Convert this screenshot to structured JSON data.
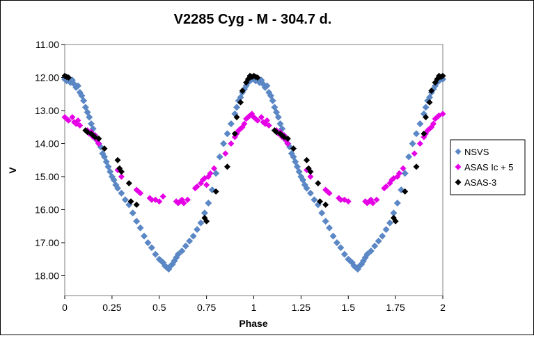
{
  "chart_data": {
    "type": "scatter",
    "title": "V2285 Cyg - M - 304.7 d.",
    "xlabel": "Phase",
    "ylabel": "V",
    "xlim": [
      0,
      2
    ],
    "ylim": [
      11.0,
      18.6
    ],
    "y_inverted": true,
    "grid": false,
    "legend_position": "right",
    "x_ticks": [
      "0",
      "0.25",
      "0.5",
      "0.75",
      "1",
      "1.25",
      "1.5",
      "1.75",
      "2"
    ],
    "y_ticks": [
      "11.00",
      "12.00",
      "13.00",
      "14.00",
      "15.00",
      "16.00",
      "17.00",
      "18.00"
    ],
    "series": [
      {
        "name": "NSVS",
        "color": "#5B87C5",
        "marker": "diamond",
        "points": [
          [
            0.0,
            12.05
          ],
          [
            0.01,
            12.1
          ],
          [
            0.02,
            12.02
          ],
          [
            0.03,
            12.15
          ],
          [
            0.04,
            12.08
          ],
          [
            0.05,
            12.2
          ],
          [
            0.06,
            12.3
          ],
          [
            0.07,
            12.25
          ],
          [
            0.08,
            12.45
          ],
          [
            0.09,
            12.55
          ],
          [
            0.1,
            12.7
          ],
          [
            0.11,
            12.9
          ],
          [
            0.12,
            13.05
          ],
          [
            0.13,
            13.2
          ],
          [
            0.14,
            13.4
          ],
          [
            0.15,
            13.55
          ],
          [
            0.16,
            13.75
          ],
          [
            0.17,
            13.9
          ],
          [
            0.18,
            14.0
          ],
          [
            0.19,
            14.1
          ],
          [
            0.2,
            14.3
          ],
          [
            0.21,
            14.4
          ],
          [
            0.22,
            14.55
          ],
          [
            0.23,
            14.7
          ],
          [
            0.24,
            14.85
          ],
          [
            0.25,
            15.0
          ],
          [
            0.26,
            15.1
          ],
          [
            0.27,
            15.25
          ],
          [
            0.28,
            15.35
          ],
          [
            0.3,
            15.5
          ],
          [
            0.32,
            15.7
          ],
          [
            0.34,
            15.85
          ],
          [
            0.36,
            16.1
          ],
          [
            0.38,
            16.35
          ],
          [
            0.4,
            16.55
          ],
          [
            0.42,
            16.8
          ],
          [
            0.44,
            17.0
          ],
          [
            0.46,
            17.15
          ],
          [
            0.48,
            17.35
          ],
          [
            0.5,
            17.5
          ],
          [
            0.51,
            17.55
          ],
          [
            0.52,
            17.6
          ],
          [
            0.53,
            17.7
          ],
          [
            0.54,
            17.75
          ],
          [
            0.55,
            17.8
          ],
          [
            0.56,
            17.7
          ],
          [
            0.57,
            17.65
          ],
          [
            0.58,
            17.55
          ],
          [
            0.59,
            17.45
          ],
          [
            0.6,
            17.35
          ],
          [
            0.62,
            17.25
          ],
          [
            0.64,
            17.1
          ],
          [
            0.66,
            16.95
          ],
          [
            0.68,
            16.8
          ],
          [
            0.7,
            16.6
          ],
          [
            0.72,
            16.4
          ],
          [
            0.74,
            16.1
          ],
          [
            0.76,
            15.8
          ],
          [
            0.78,
            15.4
          ],
          [
            0.8,
            14.9
          ],
          [
            0.82,
            14.4
          ],
          [
            0.84,
            14.0
          ],
          [
            0.86,
            13.7
          ],
          [
            0.88,
            13.4
          ],
          [
            0.9,
            13.1
          ],
          [
            0.91,
            12.9
          ],
          [
            0.92,
            12.7
          ],
          [
            0.93,
            12.6
          ],
          [
            0.94,
            12.45
          ],
          [
            0.95,
            12.35
          ],
          [
            0.96,
            12.25
          ],
          [
            0.97,
            12.15
          ],
          [
            0.98,
            12.1
          ],
          [
            0.99,
            12.05
          ],
          [
            1.0,
            12.05
          ],
          [
            1.01,
            12.1
          ],
          [
            1.02,
            12.02
          ],
          [
            1.03,
            12.15
          ],
          [
            1.04,
            12.08
          ],
          [
            1.05,
            12.2
          ],
          [
            1.06,
            12.3
          ],
          [
            1.07,
            12.25
          ],
          [
            1.08,
            12.45
          ],
          [
            1.09,
            12.55
          ],
          [
            1.1,
            12.7
          ],
          [
            1.11,
            12.9
          ],
          [
            1.12,
            13.05
          ],
          [
            1.13,
            13.2
          ],
          [
            1.14,
            13.4
          ],
          [
            1.15,
            13.55
          ],
          [
            1.16,
            13.75
          ],
          [
            1.17,
            13.9
          ],
          [
            1.18,
            14.0
          ],
          [
            1.19,
            14.1
          ],
          [
            1.2,
            14.3
          ],
          [
            1.21,
            14.4
          ],
          [
            1.22,
            14.55
          ],
          [
            1.23,
            14.7
          ],
          [
            1.24,
            14.85
          ],
          [
            1.25,
            15.0
          ],
          [
            1.26,
            15.1
          ],
          [
            1.27,
            15.25
          ],
          [
            1.28,
            15.35
          ],
          [
            1.3,
            15.5
          ],
          [
            1.32,
            15.7
          ],
          [
            1.34,
            15.85
          ],
          [
            1.36,
            16.1
          ],
          [
            1.38,
            16.35
          ],
          [
            1.4,
            16.55
          ],
          [
            1.42,
            16.8
          ],
          [
            1.44,
            17.0
          ],
          [
            1.46,
            17.15
          ],
          [
            1.48,
            17.35
          ],
          [
            1.5,
            17.5
          ],
          [
            1.51,
            17.55
          ],
          [
            1.52,
            17.6
          ],
          [
            1.53,
            17.7
          ],
          [
            1.54,
            17.75
          ],
          [
            1.55,
            17.8
          ],
          [
            1.56,
            17.7
          ],
          [
            1.57,
            17.65
          ],
          [
            1.58,
            17.55
          ],
          [
            1.59,
            17.45
          ],
          [
            1.6,
            17.35
          ],
          [
            1.62,
            17.25
          ],
          [
            1.64,
            17.1
          ],
          [
            1.66,
            16.95
          ],
          [
            1.68,
            16.8
          ],
          [
            1.7,
            16.6
          ],
          [
            1.72,
            16.4
          ],
          [
            1.74,
            16.1
          ],
          [
            1.76,
            15.8
          ],
          [
            1.78,
            15.4
          ],
          [
            1.8,
            14.9
          ],
          [
            1.82,
            14.4
          ],
          [
            1.84,
            14.0
          ],
          [
            1.86,
            13.7
          ],
          [
            1.88,
            13.4
          ],
          [
            1.9,
            13.1
          ],
          [
            1.91,
            12.9
          ],
          [
            1.92,
            12.7
          ],
          [
            1.93,
            12.6
          ],
          [
            1.94,
            12.45
          ],
          [
            1.95,
            12.35
          ],
          [
            1.96,
            12.25
          ],
          [
            1.97,
            12.15
          ],
          [
            1.98,
            12.1
          ],
          [
            1.99,
            12.05
          ],
          [
            2.0,
            12.05
          ]
        ]
      },
      {
        "name": "ASAS Ic + 5",
        "color": "#E600E6",
        "marker": "diamond",
        "points": [
          [
            0.0,
            13.2
          ],
          [
            0.01,
            13.25
          ],
          [
            0.02,
            13.3
          ],
          [
            0.04,
            13.2
          ],
          [
            0.05,
            13.35
          ],
          [
            0.06,
            13.4
          ],
          [
            0.07,
            13.3
          ],
          [
            0.08,
            13.45
          ],
          [
            0.12,
            13.6
          ],
          [
            0.13,
            13.7
          ],
          [
            0.14,
            13.65
          ],
          [
            0.15,
            13.8
          ],
          [
            0.16,
            13.75
          ],
          [
            0.17,
            13.9
          ],
          [
            0.18,
            14.0
          ],
          [
            0.28,
            14.8
          ],
          [
            0.3,
            15.0
          ],
          [
            0.38,
            15.4
          ],
          [
            0.39,
            15.45
          ],
          [
            0.4,
            15.5
          ],
          [
            0.45,
            15.65
          ],
          [
            0.46,
            15.7
          ],
          [
            0.48,
            15.7
          ],
          [
            0.5,
            15.75
          ],
          [
            0.52,
            15.6
          ],
          [
            0.59,
            15.75
          ],
          [
            0.6,
            15.8
          ],
          [
            0.61,
            15.75
          ],
          [
            0.62,
            15.7
          ],
          [
            0.63,
            15.8
          ],
          [
            0.65,
            15.7
          ],
          [
            0.69,
            15.35
          ],
          [
            0.7,
            15.3
          ],
          [
            0.72,
            15.2
          ],
          [
            0.73,
            15.1
          ],
          [
            0.74,
            15.05
          ],
          [
            0.75,
            15.25
          ],
          [
            0.76,
            15.0
          ],
          [
            0.77,
            14.9
          ],
          [
            0.79,
            14.75
          ],
          [
            0.85,
            14.3
          ],
          [
            0.88,
            14.0
          ],
          [
            0.9,
            13.8
          ],
          [
            0.91,
            13.7
          ],
          [
            0.92,
            13.6
          ],
          [
            0.93,
            13.55
          ],
          [
            0.94,
            13.5
          ],
          [
            0.95,
            13.4
          ],
          [
            0.96,
            13.25
          ],
          [
            0.97,
            13.2
          ],
          [
            0.98,
            13.15
          ],
          [
            0.99,
            13.1
          ],
          [
            1.0,
            13.2
          ],
          [
            1.01,
            13.25
          ],
          [
            1.02,
            13.3
          ],
          [
            1.04,
            13.2
          ],
          [
            1.05,
            13.35
          ],
          [
            1.06,
            13.4
          ],
          [
            1.07,
            13.3
          ],
          [
            1.08,
            13.45
          ],
          [
            1.12,
            13.6
          ],
          [
            1.13,
            13.7
          ],
          [
            1.14,
            13.65
          ],
          [
            1.15,
            13.8
          ],
          [
            1.16,
            13.75
          ],
          [
            1.17,
            13.9
          ],
          [
            1.18,
            14.0
          ],
          [
            1.28,
            14.8
          ],
          [
            1.3,
            15.0
          ],
          [
            1.38,
            15.4
          ],
          [
            1.39,
            15.45
          ],
          [
            1.4,
            15.5
          ],
          [
            1.45,
            15.65
          ],
          [
            1.46,
            15.7
          ],
          [
            1.48,
            15.7
          ],
          [
            1.5,
            15.75
          ],
          [
            1.59,
            15.75
          ],
          [
            1.6,
            15.8
          ],
          [
            1.61,
            15.75
          ],
          [
            1.62,
            15.7
          ],
          [
            1.63,
            15.8
          ],
          [
            1.65,
            15.7
          ],
          [
            1.69,
            15.35
          ],
          [
            1.7,
            15.3
          ],
          [
            1.72,
            15.2
          ],
          [
            1.73,
            15.1
          ],
          [
            1.74,
            15.05
          ],
          [
            1.76,
            15.0
          ],
          [
            1.77,
            14.9
          ],
          [
            1.79,
            14.75
          ],
          [
            1.85,
            14.3
          ],
          [
            1.88,
            14.0
          ],
          [
            1.9,
            13.8
          ],
          [
            1.91,
            13.7
          ],
          [
            1.92,
            13.6
          ],
          [
            1.93,
            13.55
          ],
          [
            1.94,
            13.5
          ],
          [
            1.95,
            13.4
          ],
          [
            1.96,
            13.25
          ],
          [
            1.97,
            13.2
          ],
          [
            1.98,
            13.15
          ],
          [
            2.0,
            13.1
          ]
        ]
      },
      {
        "name": "ASAS-3",
        "color": "#000000",
        "marker": "diamond",
        "points": [
          [
            0.0,
            11.95
          ],
          [
            0.01,
            11.98
          ],
          [
            0.02,
            12.0
          ],
          [
            0.11,
            13.6
          ],
          [
            0.12,
            13.65
          ],
          [
            0.14,
            13.7
          ],
          [
            0.15,
            13.75
          ],
          [
            0.16,
            13.8
          ],
          [
            0.18,
            13.85
          ],
          [
            0.21,
            14.15
          ],
          [
            0.28,
            14.5
          ],
          [
            0.29,
            14.75
          ],
          [
            0.3,
            14.85
          ],
          [
            0.34,
            15.2
          ],
          [
            0.35,
            15.75
          ],
          [
            0.38,
            15.85
          ],
          [
            0.74,
            16.25
          ],
          [
            0.75,
            16.35
          ],
          [
            0.8,
            15.45
          ],
          [
            0.86,
            14.7
          ],
          [
            0.9,
            13.7
          ],
          [
            0.91,
            13.2
          ],
          [
            0.93,
            12.75
          ],
          [
            0.94,
            12.4
          ],
          [
            0.96,
            12.15
          ],
          [
            0.97,
            12.05
          ],
          [
            0.98,
            11.95
          ],
          [
            0.99,
            11.98
          ],
          [
            1.0,
            11.95
          ],
          [
            1.01,
            11.98
          ],
          [
            1.02,
            12.0
          ],
          [
            1.11,
            13.6
          ],
          [
            1.12,
            13.65
          ],
          [
            1.14,
            13.7
          ],
          [
            1.15,
            13.75
          ],
          [
            1.16,
            13.8
          ],
          [
            1.18,
            13.85
          ],
          [
            1.21,
            14.15
          ],
          [
            1.28,
            14.5
          ],
          [
            1.29,
            14.75
          ],
          [
            1.3,
            14.85
          ],
          [
            1.34,
            15.2
          ],
          [
            1.35,
            15.75
          ],
          [
            1.38,
            15.85
          ],
          [
            1.74,
            16.25
          ],
          [
            1.75,
            16.35
          ],
          [
            1.8,
            15.45
          ],
          [
            1.86,
            14.7
          ],
          [
            1.9,
            13.7
          ],
          [
            1.91,
            13.2
          ],
          [
            1.93,
            12.75
          ],
          [
            1.94,
            12.4
          ],
          [
            1.96,
            12.15
          ],
          [
            1.97,
            12.05
          ],
          [
            1.98,
            11.95
          ],
          [
            1.99,
            11.98
          ],
          [
            2.0,
            11.95
          ]
        ]
      }
    ]
  }
}
